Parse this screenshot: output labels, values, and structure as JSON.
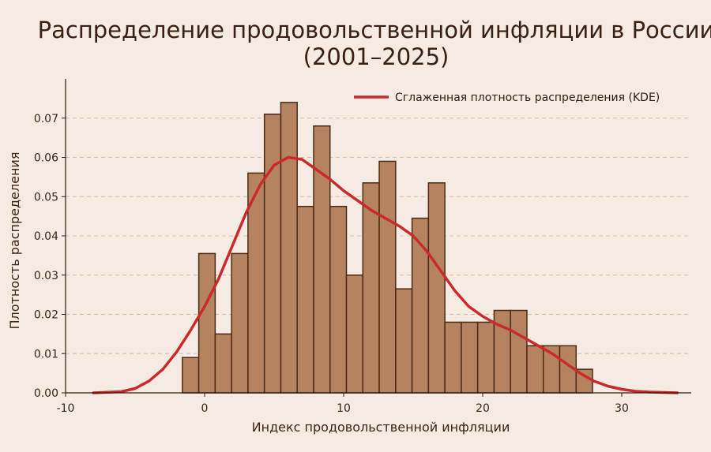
{
  "chart_data": {
    "type": "bar",
    "title": "Распределение продовольственной инфляции в России",
    "subtitle": "(2001–2025)",
    "xlabel": "Индекс продовольственной инфляции",
    "ylabel": "Плотность распределения",
    "xlim": [
      -10,
      35
    ],
    "ylim": [
      0,
      0.08
    ],
    "x_ticks": [
      -10,
      0,
      10,
      20,
      30
    ],
    "y_ticks": [
      0.0,
      0.01,
      0.02,
      0.03,
      0.04,
      0.05,
      0.06,
      0.07
    ],
    "x_tick_labels": [
      "-10",
      "0",
      "10",
      "20",
      "30"
    ],
    "y_tick_labels": [
      "0.00",
      "0.01",
      "0.02",
      "0.03",
      "0.04",
      "0.05",
      "0.06",
      "0.07"
    ],
    "grid": {
      "y": true,
      "x": false,
      "style": "dashed"
    },
    "histogram": {
      "bin_edges": [
        -1.6,
        -0.42,
        0.76,
        1.94,
        3.12,
        4.3,
        5.48,
        6.66,
        7.84,
        9.02,
        10.2,
        11.38,
        12.56,
        13.74,
        14.92,
        16.1,
        17.28,
        18.46,
        19.64,
        20.82,
        22.0,
        23.18,
        24.36,
        25.54,
        26.72,
        27.9
      ],
      "values": [
        0.009,
        0.0355,
        0.015,
        0.0355,
        0.056,
        0.071,
        0.074,
        0.0475,
        0.068,
        0.0475,
        0.03,
        0.0535,
        0.059,
        0.0265,
        0.0445,
        0.0535,
        0.018,
        0.018,
        0.018,
        0.021,
        0.021,
        0.012,
        0.012,
        0.012,
        0.006
      ],
      "color": "#b5835f",
      "edge_color": "#4a2a17"
    },
    "kde": {
      "name": "Сглаженная плотность распределения (KDE)",
      "color": "#cc2a2a",
      "x": [
        -8,
        -6,
        -5,
        -4,
        -3,
        -2,
        -1,
        0,
        1,
        2,
        3,
        4,
        5,
        6,
        7,
        8,
        9,
        10,
        11,
        12,
        13,
        14,
        15,
        16,
        17,
        18,
        19,
        20,
        21,
        22,
        23,
        24,
        25,
        26,
        27,
        28,
        29,
        30,
        31,
        32,
        33,
        34
      ],
      "y": [
        0.0,
        0.0003,
        0.0011,
        0.003,
        0.006,
        0.0105,
        0.016,
        0.022,
        0.029,
        0.0375,
        0.046,
        0.053,
        0.058,
        0.06,
        0.0595,
        0.057,
        0.0545,
        0.0515,
        0.049,
        0.0465,
        0.0445,
        0.0425,
        0.04,
        0.036,
        0.031,
        0.026,
        0.022,
        0.0195,
        0.0175,
        0.016,
        0.014,
        0.012,
        0.01,
        0.0075,
        0.005,
        0.003,
        0.0017,
        0.0009,
        0.0004,
        0.0002,
        0.0001,
        0.0
      ]
    },
    "legend": {
      "position": "top-right"
    }
  }
}
